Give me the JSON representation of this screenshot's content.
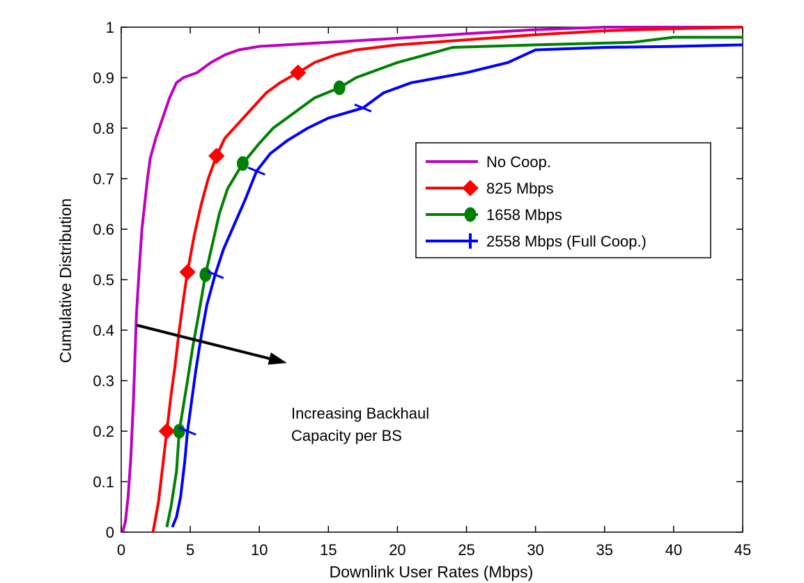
{
  "chart_data": {
    "type": "line",
    "title": "",
    "xlabel": "Downlink User Rates (Mbps)",
    "ylabel": "Cumulative Distribution",
    "xlim": [
      0,
      45
    ],
    "ylim": [
      0,
      1
    ],
    "xticks": [
      "0",
      "5",
      "10",
      "15",
      "20",
      "25",
      "30",
      "35",
      "40",
      "45"
    ],
    "yticks": [
      "0",
      "0.1",
      "0.2",
      "0.3",
      "0.4",
      "0.5",
      "0.6",
      "0.7",
      "0.8",
      "0.9",
      "1"
    ],
    "grid": false,
    "legend_position": "center-right",
    "series": [
      {
        "name": "No Coop.",
        "color": "#bf00bf",
        "marker": "none",
        "points": [
          [
            0.1,
            0
          ],
          [
            0.3,
            0.02
          ],
          [
            0.5,
            0.07
          ],
          [
            0.7,
            0.15
          ],
          [
            0.9,
            0.27
          ],
          [
            1.0,
            0.35
          ],
          [
            1.1,
            0.43
          ],
          [
            1.3,
            0.52
          ],
          [
            1.5,
            0.6
          ],
          [
            1.7,
            0.65
          ],
          [
            1.9,
            0.7
          ],
          [
            2.1,
            0.74
          ],
          [
            2.5,
            0.78
          ],
          [
            3.0,
            0.82
          ],
          [
            3.5,
            0.86
          ],
          [
            4.0,
            0.89
          ],
          [
            4.5,
            0.9
          ],
          [
            5.5,
            0.91
          ],
          [
            6.5,
            0.93
          ],
          [
            7.5,
            0.945
          ],
          [
            8.5,
            0.955
          ],
          [
            10,
            0.962
          ],
          [
            15,
            0.97
          ],
          [
            20,
            0.978
          ],
          [
            25,
            0.987
          ],
          [
            30,
            0.995
          ],
          [
            35,
            1
          ],
          [
            45,
            1
          ]
        ]
      },
      {
        "name": "825 Mbps",
        "color": "#ff0000",
        "marker": "diamond",
        "points": [
          [
            2.3,
            0
          ],
          [
            2.7,
            0.06
          ],
          [
            3.0,
            0.13
          ],
          [
            3.3,
            0.2
          ],
          [
            3.6,
            0.27
          ],
          [
            3.9,
            0.33
          ],
          [
            4.2,
            0.4
          ],
          [
            4.5,
            0.46
          ],
          [
            4.8,
            0.515
          ],
          [
            5.3,
            0.59
          ],
          [
            5.8,
            0.65
          ],
          [
            6.3,
            0.7
          ],
          [
            6.9,
            0.745
          ],
          [
            7.5,
            0.78
          ],
          [
            8.5,
            0.81
          ],
          [
            9.5,
            0.84
          ],
          [
            10.5,
            0.87
          ],
          [
            11.5,
            0.89
          ],
          [
            12.8,
            0.91
          ],
          [
            14,
            0.93
          ],
          [
            15.5,
            0.945
          ],
          [
            17,
            0.955
          ],
          [
            20,
            0.965
          ],
          [
            25,
            0.975
          ],
          [
            30,
            0.985
          ],
          [
            35,
            0.993
          ],
          [
            40,
            0.997
          ],
          [
            45,
            1
          ]
        ]
      },
      {
        "name": "1658 Mbps",
        "color": "#008000",
        "marker": "circle",
        "points": [
          [
            3.3,
            0.01
          ],
          [
            3.6,
            0.05
          ],
          [
            4.0,
            0.12
          ],
          [
            4.2,
            0.2
          ],
          [
            4.5,
            0.25
          ],
          [
            4.8,
            0.3
          ],
          [
            5.2,
            0.37
          ],
          [
            5.6,
            0.43
          ],
          [
            6.1,
            0.51
          ],
          [
            6.6,
            0.57
          ],
          [
            7.1,
            0.63
          ],
          [
            7.7,
            0.68
          ],
          [
            8.8,
            0.73
          ],
          [
            10,
            0.77
          ],
          [
            11,
            0.8
          ],
          [
            12.5,
            0.83
          ],
          [
            14,
            0.86
          ],
          [
            15.8,
            0.88
          ],
          [
            17,
            0.9
          ],
          [
            18.5,
            0.915
          ],
          [
            20,
            0.93
          ],
          [
            22,
            0.945
          ],
          [
            24,
            0.96
          ],
          [
            30,
            0.965
          ],
          [
            37,
            0.97
          ],
          [
            40,
            0.98
          ],
          [
            45,
            0.98
          ]
        ]
      },
      {
        "name": "2558 Mbps (Full Coop.)",
        "color": "#0000ff",
        "marker": "vline",
        "points": [
          [
            3.7,
            0.01
          ],
          [
            4.0,
            0.03
          ],
          [
            4.3,
            0.07
          ],
          [
            4.6,
            0.14
          ],
          [
            4.8,
            0.2
          ],
          [
            5.1,
            0.26
          ],
          [
            5.4,
            0.32
          ],
          [
            5.8,
            0.39
          ],
          [
            6.2,
            0.45
          ],
          [
            6.8,
            0.51
          ],
          [
            7.4,
            0.56
          ],
          [
            8.2,
            0.61
          ],
          [
            9.0,
            0.66
          ],
          [
            9.8,
            0.715
          ],
          [
            10.8,
            0.75
          ],
          [
            12,
            0.775
          ],
          [
            13.5,
            0.8
          ],
          [
            15,
            0.82
          ],
          [
            17.5,
            0.84
          ],
          [
            19,
            0.87
          ],
          [
            21,
            0.89
          ],
          [
            25,
            0.91
          ],
          [
            28,
            0.93
          ],
          [
            30,
            0.955
          ],
          [
            35,
            0.96
          ],
          [
            40,
            0.962
          ],
          [
            45,
            0.965
          ]
        ]
      }
    ],
    "markers": [
      {
        "series": 1,
        "shape": "diamond",
        "x": 3.3,
        "y": 0.2
      },
      {
        "series": 1,
        "shape": "diamond",
        "x": 4.8,
        "y": 0.515
      },
      {
        "series": 1,
        "shape": "diamond",
        "x": 6.9,
        "y": 0.745
      },
      {
        "series": 1,
        "shape": "diamond",
        "x": 12.8,
        "y": 0.91
      },
      {
        "series": 2,
        "shape": "circle",
        "x": 4.2,
        "y": 0.2
      },
      {
        "series": 2,
        "shape": "circle",
        "x": 6.1,
        "y": 0.51
      },
      {
        "series": 2,
        "shape": "circle",
        "x": 8.8,
        "y": 0.73
      },
      {
        "series": 2,
        "shape": "circle",
        "x": 15.8,
        "y": 0.88
      },
      {
        "series": 3,
        "shape": "tick",
        "x": 4.8,
        "y": 0.2
      },
      {
        "series": 3,
        "shape": "tick",
        "x": 6.8,
        "y": 0.51
      },
      {
        "series": 3,
        "shape": "tick",
        "x": 9.8,
        "y": 0.715
      },
      {
        "series": 3,
        "shape": "tick",
        "x": 17.5,
        "y": 0.84
      }
    ],
    "annotation": {
      "line1": "Increasing Backhaul",
      "line2": "Capacity per BS",
      "arrow_from": [
        1.1,
        0.41
      ],
      "arrow_to": [
        12.0,
        0.335
      ]
    }
  }
}
